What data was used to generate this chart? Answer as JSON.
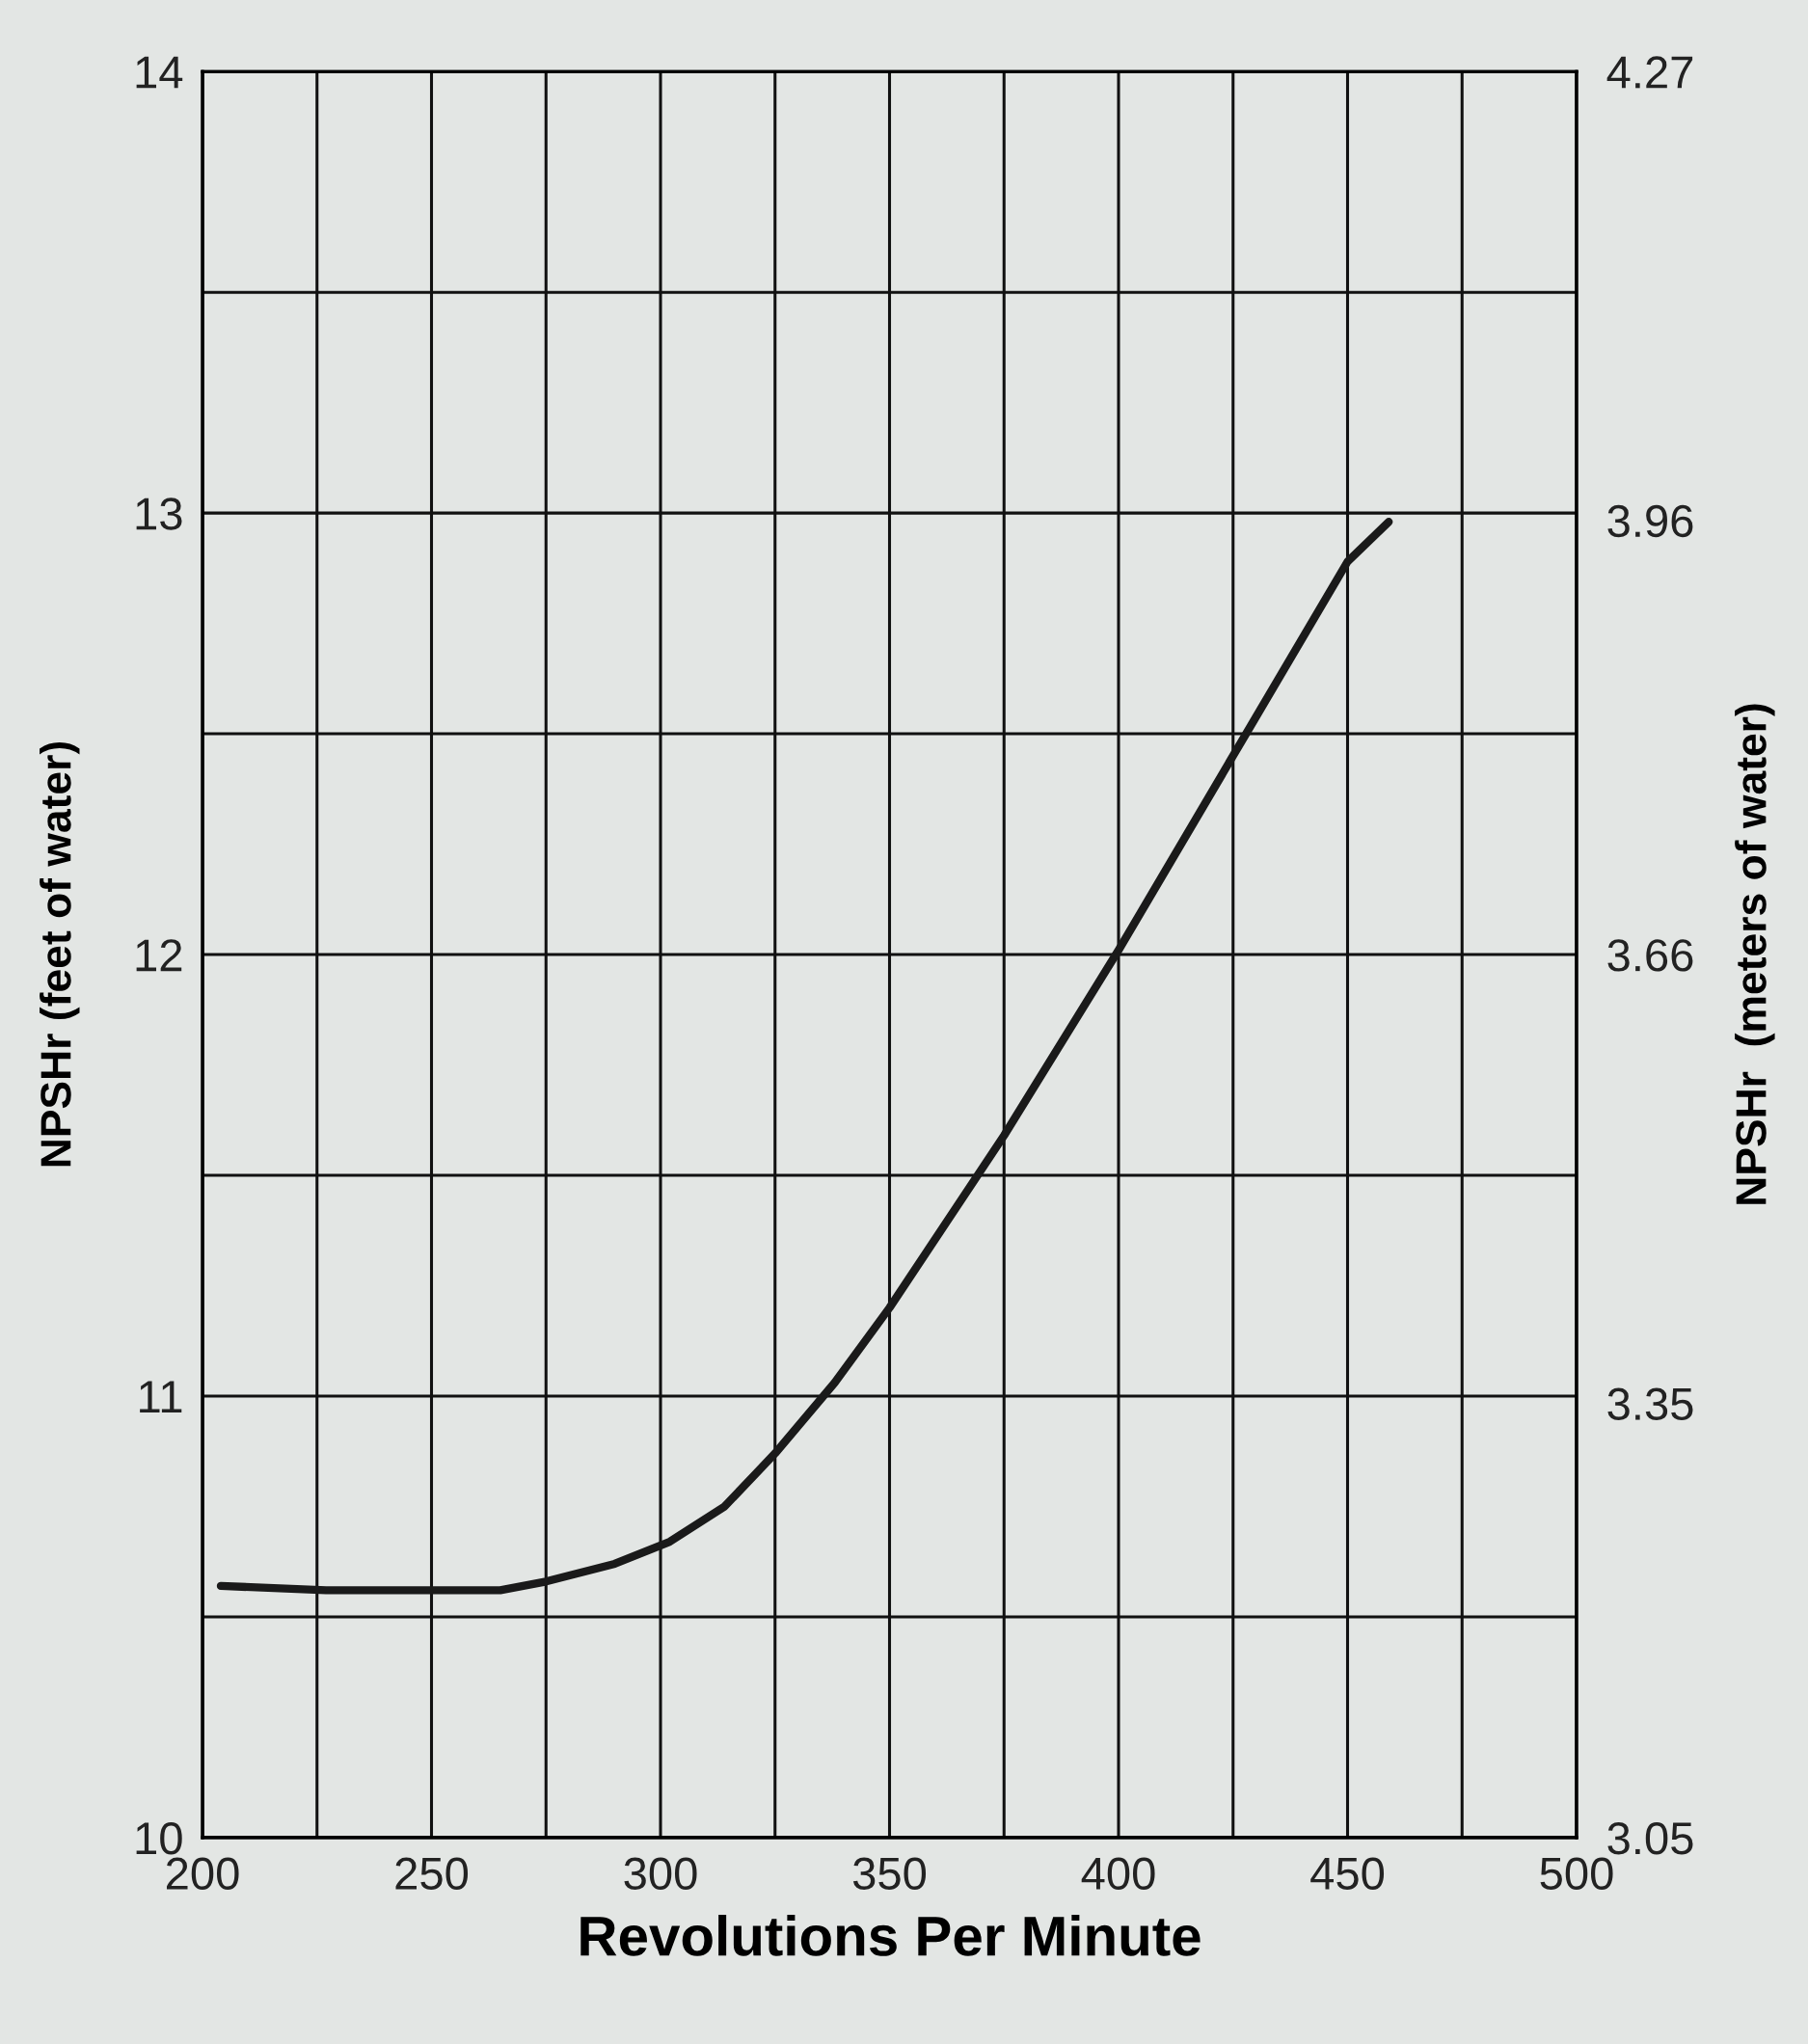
{
  "chart_data": {
    "type": "line",
    "xlabel": "Revolutions Per Minute",
    "ylabel": "NPSHr (feet of water)",
    "y2label": "NPSHr  (meters of water)",
    "x": [
      204,
      227,
      250,
      265,
      275,
      290,
      302,
      314,
      325,
      338,
      350,
      375,
      400,
      425,
      450,
      459
    ],
    "series": [
      {
        "color": "#1a1a1a",
        "values": [
          10.57,
          10.56,
          10.56,
          10.56,
          10.58,
          10.62,
          10.67,
          10.75,
          10.87,
          11.03,
          11.2,
          11.59,
          12.01,
          12.45,
          12.89,
          12.98
        ]
      }
    ],
    "xlim": [
      200,
      500
    ],
    "xticks": [
      200,
      {
        "value": 225,
        "label": null
      },
      250,
      {
        "value": 275,
        "label": null
      },
      300,
      {
        "value": 325,
        "label": null
      },
      350,
      {
        "value": 375,
        "label": null
      },
      400,
      {
        "value": 425,
        "label": null
      },
      450,
      {
        "value": 475,
        "label": null
      },
      500
    ],
    "ylim": [
      10,
      14
    ],
    "yticks": [
      10,
      {
        "value": 10.5,
        "label": null
      },
      11,
      {
        "value": 11.5,
        "label": null
      },
      12,
      {
        "value": 12.5,
        "label": null
      },
      13,
      {
        "value": 13.5,
        "label": null
      },
      14
    ],
    "y2lim": [
      3.05,
      4.27
    ],
    "y2ticks": [
      3.05,
      3.35,
      3.66,
      3.96,
      4.27
    ],
    "grid": true,
    "marker": "none",
    "line_style": "solid"
  }
}
